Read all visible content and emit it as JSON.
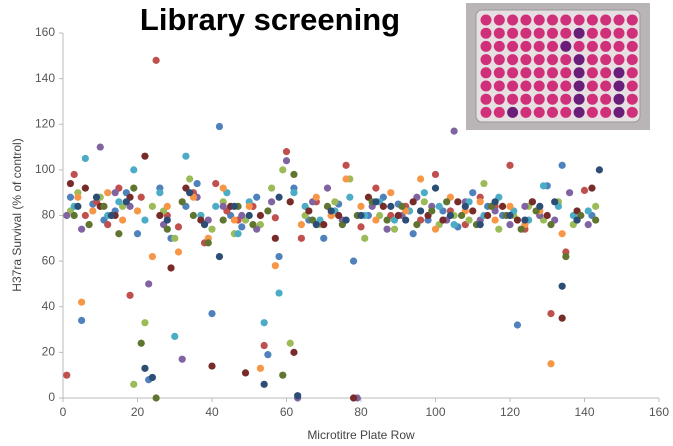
{
  "chart_data": {
    "type": "scatter",
    "title": "Library screening",
    "x_label": "Microtitre Plate Row",
    "y_label": "H37ra Survival (% of control)",
    "xlim": [
      0,
      160
    ],
    "xticks": [
      0,
      20,
      40,
      60,
      80,
      100,
      120,
      140,
      160
    ],
    "ylim": [
      0,
      160
    ],
    "yticks": [
      0,
      20,
      40,
      60,
      80,
      100,
      120,
      140,
      160
    ],
    "grid": false,
    "series": [
      {
        "color": "#4F81BD",
        "x": [
          2,
          5,
          8,
          11,
          14,
          17,
          20,
          23,
          26,
          29,
          33,
          36,
          40,
          42,
          45,
          48,
          52,
          55,
          58,
          62,
          66,
          70,
          74,
          78,
          82,
          86,
          90,
          94,
          98,
          102,
          106,
          110,
          114,
          118,
          122,
          126,
          130,
          134,
          138,
          142
        ],
        "values": [
          88,
          34,
          85,
          78,
          82,
          90,
          72,
          8,
          92,
          70,
          84,
          94,
          37,
          119,
          80,
          75,
          88,
          19,
          62,
          92,
          78,
          70,
          85,
          60,
          80,
          88,
          85,
          72,
          78,
          82,
          75,
          90,
          84,
          80,
          32,
          86,
          93,
          102,
          78,
          80
        ]
      },
      {
        "color": "#C0504D",
        "x": [
          1,
          3,
          6,
          9,
          12,
          15,
          18,
          21,
          25,
          28,
          31,
          35,
          38,
          41,
          44,
          47,
          51,
          54,
          57,
          60,
          64,
          68,
          72,
          76,
          80,
          84,
          88,
          92,
          96,
          100,
          104,
          108,
          112,
          116,
          120,
          124,
          128,
          131,
          135,
          140
        ],
        "values": [
          10,
          98,
          80,
          86,
          76,
          92,
          45,
          88,
          148,
          80,
          75,
          90,
          68,
          94,
          82,
          78,
          84,
          23,
          79,
          108,
          70,
          86,
          80,
          102,
          75,
          92,
          80,
          84,
          78,
          98,
          82,
          76,
          88,
          84,
          102,
          74,
          80,
          37,
          64,
          91
        ]
      },
      {
        "color": "#9BBB59",
        "x": [
          2,
          4,
          7,
          10,
          13,
          16,
          19,
          22,
          24,
          27,
          30,
          34,
          37,
          40,
          43,
          46,
          49,
          53,
          56,
          59,
          61,
          65,
          69,
          73,
          77,
          81,
          85,
          89,
          93,
          97,
          101,
          105,
          109,
          113,
          117,
          121,
          125,
          129,
          133,
          137,
          143
        ],
        "values": [
          82,
          90,
          76,
          88,
          80,
          84,
          6,
          33,
          84,
          82,
          70,
          96,
          80,
          74,
          86,
          72,
          78,
          76,
          92,
          100,
          24,
          80,
          76,
          86,
          96,
          70,
          80,
          74,
          82,
          86,
          76,
          80,
          78,
          94,
          74,
          80,
          84,
          78,
          86,
          76,
          84
        ]
      },
      {
        "color": "#8064A2",
        "x": [
          1,
          5,
          10,
          14,
          18,
          23,
          27,
          32,
          36,
          39,
          43,
          48,
          52,
          56,
          60,
          63,
          67,
          71,
          75,
          79,
          83,
          87,
          91,
          95,
          99,
          103,
          105,
          108,
          112,
          116,
          120,
          124,
          128,
          132,
          136,
          141
        ],
        "values": [
          80,
          74,
          110,
          90,
          84,
          50,
          76,
          17,
          88,
          78,
          84,
          80,
          74,
          86,
          104,
          0,
          86,
          92,
          78,
          0,
          84,
          74,
          80,
          88,
          84,
          78,
          117,
          86,
          78,
          82,
          76,
          84,
          80,
          78,
          90,
          76
        ]
      },
      {
        "color": "#4BACC6",
        "x": [
          3,
          6,
          9,
          12,
          15,
          19,
          22,
          26,
          30,
          33,
          37,
          41,
          44,
          47,
          50,
          54,
          58,
          62,
          65,
          69,
          73,
          77,
          81,
          85,
          89,
          93,
          97,
          101,
          105,
          109,
          113,
          117,
          121,
          125,
          129,
          133,
          137,
          141
        ],
        "values": [
          84,
          105,
          88,
          80,
          86,
          100,
          78,
          90,
          27,
          106,
          80,
          84,
          90,
          72,
          86,
          33,
          46,
          90,
          84,
          78,
          82,
          88,
          80,
          86,
          78,
          82,
          90,
          84,
          76,
          86,
          80,
          88,
          82,
          78,
          93,
          84,
          80,
          82
        ]
      },
      {
        "color": "#F79646",
        "x": [
          4,
          5,
          8,
          12,
          16,
          20,
          24,
          28,
          31,
          35,
          39,
          43,
          46,
          50,
          53,
          57,
          61,
          64,
          68,
          72,
          76,
          80,
          84,
          88,
          92,
          96,
          100,
          104,
          108,
          112,
          116,
          120,
          124,
          128,
          131,
          134,
          139
        ],
        "values": [
          88,
          42,
          82,
          90,
          78,
          82,
          62,
          84,
          64,
          88,
          70,
          92,
          78,
          84,
          13,
          58,
          86,
          76,
          88,
          80,
          96,
          84,
          78,
          90,
          82,
          96,
          74,
          88,
          82,
          86,
          78,
          84,
          76,
          82,
          15,
          72,
          80
        ]
      },
      {
        "color": "#772C2A",
        "x": [
          2,
          6,
          10,
          14,
          18,
          22,
          26,
          29,
          33,
          37,
          40,
          45,
          49,
          53,
          57,
          61,
          62,
          66,
          70,
          74,
          78,
          82,
          86,
          90,
          94,
          98,
          102,
          106,
          110,
          114,
          118,
          122,
          126,
          130,
          134,
          138,
          142
        ],
        "values": [
          94,
          92,
          84,
          80,
          88,
          106,
          80,
          57,
          92,
          78,
          14,
          84,
          11,
          80,
          70,
          86,
          20,
          82,
          76,
          80,
          0,
          88,
          84,
          80,
          86,
          80,
          78,
          86,
          82,
          80,
          84,
          78,
          86,
          80,
          35,
          82,
          92
        ]
      },
      {
        "color": "#5F7530",
        "x": [
          3,
          7,
          11,
          15,
          19,
          21,
          25,
          28,
          32,
          35,
          39,
          43,
          47,
          51,
          55,
          59,
          62,
          67,
          71,
          75,
          79,
          83,
          87,
          91,
          95,
          99,
          103,
          107,
          111,
          115,
          119,
          123,
          127,
          131,
          135,
          139,
          143
        ],
        "values": [
          80,
          76,
          84,
          72,
          92,
          24,
          0,
          74,
          86,
          80,
          68,
          78,
          84,
          76,
          82,
          10,
          98,
          78,
          84,
          76,
          80,
          86,
          78,
          84,
          76,
          82,
          86,
          80,
          76,
          84,
          80,
          74,
          82,
          76,
          62,
          80,
          78
        ]
      },
      {
        "color": "#2C4D75",
        "x": [
          4,
          9,
          13,
          17,
          22,
          24,
          28,
          34,
          38,
          42,
          46,
          50,
          54,
          58,
          63,
          68,
          72,
          76,
          80,
          84,
          88,
          92,
          96,
          100,
          104,
          108,
          112,
          116,
          120,
          124,
          128,
          132,
          134,
          138,
          144
        ],
        "values": [
          84,
          88,
          80,
          86,
          13,
          9,
          78,
          90,
          76,
          62,
          84,
          80,
          6,
          88,
          1,
          76,
          82,
          78,
          80,
          86,
          84,
          78,
          82,
          92,
          80,
          84,
          76,
          86,
          80,
          78,
          84,
          86,
          49,
          78,
          100
        ]
      }
    ]
  }
}
